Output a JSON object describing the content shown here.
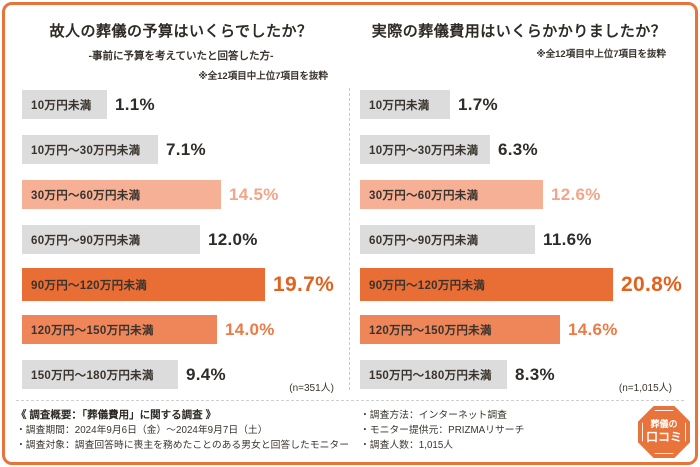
{
  "colors": {
    "accent": "#e8743c",
    "bar_gray": "#dcdcdc",
    "bar_light": "#f6b096",
    "bar_mid": "#ee865a",
    "bar_dark": "#e86e35",
    "pct_default": "#2f2b28",
    "pct_light": "#f4a488",
    "pct_mid": "#ec7b45",
    "pct_dark": "#e2611c"
  },
  "chart_data": [
    {
      "type": "bar",
      "orientation": "horizontal",
      "unit": "%",
      "value_range": [
        0,
        25
      ],
      "title": "故人の葬儀の予算はいくらでしたか？",
      "subtitle": "-事前に予算を考えていたと回答した方-",
      "note": "※全12項目中上位7項目を抜粋",
      "sample_label": "(n=351人)",
      "categories": [
        "10万円未満",
        "10万円～30万円未満",
        "30万円～60万円未満",
        "60万円～90万円未満",
        "90万円～120万円未満",
        "120万円～150万円未満",
        "150万円～180万円未満"
      ],
      "values": [
        1.1,
        7.1,
        14.5,
        12.0,
        19.7,
        14.0,
        9.4
      ],
      "value_labels": [
        "1.1%",
        "7.1%",
        "14.5%",
        "12.0%",
        "19.7%",
        "14.0%",
        "9.4%"
      ],
      "bar_styles": [
        "gray",
        "gray",
        "light",
        "gray",
        "dark",
        "mid",
        "gray"
      ]
    },
    {
      "type": "bar",
      "orientation": "horizontal",
      "unit": "%",
      "value_range": [
        0,
        25
      ],
      "title": "実際の葬儀費用はいくらかかりましたか？",
      "subtitle": "",
      "note": "※全12項目中上位7項目を抜粋",
      "sample_label": "(n=1,015人)",
      "categories": [
        "10万円未満",
        "10万円～30万円未満",
        "30万円～60万円未満",
        "60万円～90万円未満",
        "90万円～120万円未満",
        "120万円～150万円未満",
        "150万円～180万円未満"
      ],
      "values": [
        1.7,
        6.3,
        12.6,
        11.6,
        20.8,
        14.6,
        8.3
      ],
      "value_labels": [
        "1.7%",
        "6.3%",
        "12.6%",
        "11.6%",
        "20.8%",
        "14.6%",
        "8.3%"
      ],
      "bar_styles": [
        "gray",
        "gray",
        "light",
        "gray",
        "dark",
        "mid",
        "gray"
      ]
    }
  ],
  "footer": {
    "heading": "《 調査概要：「葬儀費用」に関する調査 》",
    "left_items": [
      "・調査期間：2024年9月6日（金）～2024年9月7日（土）",
      "・調査対象：調査回答時に喪主を務めたことのある男女と回答したモニター"
    ],
    "right_items": [
      "・調査方法：インターネット調査",
      "・モニター提供元：PRIZMAリサーチ",
      "・調査人数：1,015人"
    ]
  },
  "logo": {
    "line1": "葬儀の",
    "line2": "口コミ"
  }
}
